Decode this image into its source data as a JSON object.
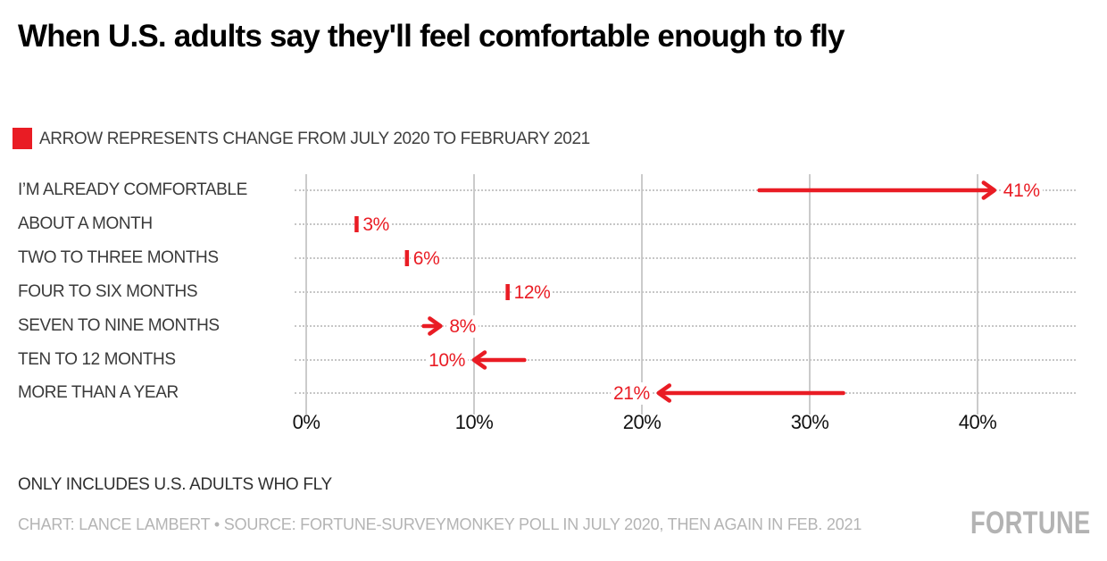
{
  "page": {
    "title": "When U.S. adults say they'll feel comfortable enough to fly",
    "note": "ONLY INCLUDES U.S. ADULTS WHO FLY",
    "credit": "CHART: LANCE LAMBERT • SOURCE: FORTUNE-SURVEYMONKEY POLL IN JULY 2020, THEN AGAIN IN FEB. 2021",
    "brand": "FORTUNE"
  },
  "colors": {
    "accent_red": "#e91c24",
    "gridline_gray": "#cbcbcb",
    "dotted_gray": "#c6c6c6",
    "category_label": "#3a3a3a",
    "credit_gray": "#b4b4b4"
  },
  "chart_data": {
    "type": "arrow",
    "title": "When U.S. adults say they'll feel comfortable enough to fly",
    "legend": "ARROW REPRESENTS CHANGE FROM JULY 2020 TO FEBRUARY 2021",
    "note": "ONLY INCLUDES U.S. ADULTS WHO FLY",
    "xlabel": "",
    "ylabel": "",
    "x_range": [
      0,
      45.9
    ],
    "grid": "vertical-solid-horizontal-dotted",
    "x_ticks": [
      {
        "value": 0,
        "label": "0%"
      },
      {
        "value": 10,
        "label": "10%"
      },
      {
        "value": 20,
        "label": "20%"
      },
      {
        "value": 30,
        "label": "30%"
      },
      {
        "value": 40,
        "label": "40%"
      }
    ],
    "series_note": "start = July 2020, end = February 2021; mark 'tick' means no visible change drawn",
    "rows": [
      {
        "label": "I’M ALREADY COMFORTABLE",
        "mark": "arrow",
        "start": 27,
        "end": 41,
        "value_label": "41%"
      },
      {
        "label": "ABOUT A MONTH",
        "mark": "tick",
        "start": 3,
        "end": 3,
        "value_label": "3%"
      },
      {
        "label": "TWO TO THREE MONTHS",
        "mark": "tick",
        "start": 6,
        "end": 6,
        "value_label": "6%"
      },
      {
        "label": "FOUR TO SIX MONTHS",
        "mark": "tick",
        "start": 12,
        "end": 12,
        "value_label": "12%"
      },
      {
        "label": "SEVEN TO NINE MONTHS",
        "mark": "arrow",
        "start": 7,
        "end": 8,
        "value_label": "8%"
      },
      {
        "label": "TEN TO 12 MONTHS",
        "mark": "arrow",
        "start": 13,
        "end": 10,
        "value_label": "10%"
      },
      {
        "label": "MORE THAN A YEAR",
        "mark": "arrow",
        "start": 32,
        "end": 21,
        "value_label": "21%"
      }
    ]
  }
}
